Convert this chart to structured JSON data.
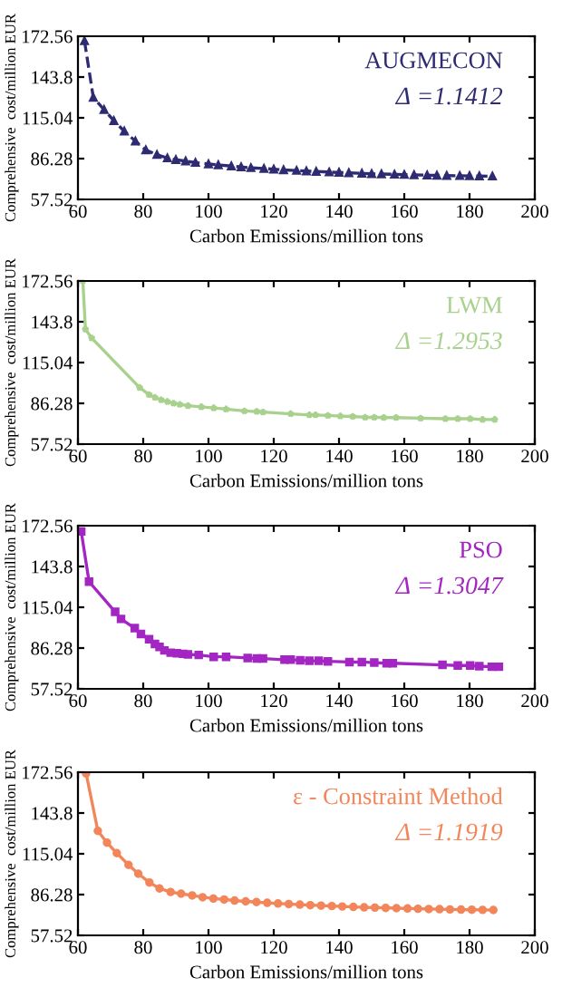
{
  "chart_data": [
    {
      "type": "line",
      "xlabel": "Carbon Emissions/million tons",
      "ylabel": "Comprehensive  cost/million EUR",
      "annotations": [
        "AUGMECON",
        "Δ =1.1412"
      ],
      "xlim": [
        60,
        200
      ],
      "ylim": [
        57.52,
        172.56
      ],
      "xticks": [
        60,
        80,
        100,
        120,
        140,
        160,
        180,
        200
      ],
      "yticks": [
        57.52,
        86.28,
        115.04,
        143.8,
        172.56
      ],
      "marker": "triangle",
      "line_style": "dashed",
      "grid": false,
      "series": [
        {
          "color": "#2e2b72",
          "x": [
            62,
            64.7,
            68,
            71,
            74.2,
            77.6,
            80.8,
            84.2,
            87.4,
            90,
            93,
            96,
            100,
            103,
            107,
            110,
            113,
            117,
            120,
            123,
            127,
            130,
            133,
            137,
            140,
            143,
            147,
            150,
            153,
            157,
            160,
            163,
            167,
            170,
            173,
            177,
            180,
            183,
            187
          ],
          "values": [
            169.3,
            129.4,
            120.8,
            113,
            105.6,
            98.6,
            92.4,
            89.1,
            86.7,
            85.5,
            84.5,
            83.5,
            82.5,
            81.8,
            81,
            80.4,
            79.8,
            79.3,
            78.8,
            78.3,
            77.9,
            77.5,
            77.2,
            76.8,
            76.5,
            76.2,
            75.9,
            75.6,
            75.4,
            75.2,
            75,
            74.8,
            74.6,
            74.5,
            74.3,
            74.2,
            74.1,
            74,
            73.9
          ]
        }
      ]
    },
    {
      "type": "line",
      "xlabel": "Carbon Emissions/million tons",
      "ylabel": "Comprehensive  cost/million EUR",
      "annotations": [
        "LWM",
        "Δ =1.2953"
      ],
      "xlim": [
        60,
        200
      ],
      "ylim": [
        57.52,
        172.56
      ],
      "xticks": [
        60,
        80,
        100,
        120,
        140,
        160,
        180,
        200
      ],
      "yticks": [
        57.52,
        86.28,
        115.04,
        143.8,
        172.56
      ],
      "marker": "star",
      "line_style": "solid",
      "grid": false,
      "series": [
        {
          "color": "#a9d18e",
          "x": [
            61.5,
            62.3,
            64.2,
            78.9,
            81.8,
            83.6,
            85.5,
            87.4,
            89.3,
            91.2,
            93.7,
            97.8,
            101.6,
            105.4,
            111,
            114.8,
            116.7,
            125.2,
            130.9,
            132.8,
            136.6,
            140.4,
            144.2,
            148,
            150.8,
            153.7,
            157.5,
            165,
            172.6,
            176.4,
            180.2,
            184,
            187.7
          ],
          "values": [
            172.56,
            138.5,
            132.3,
            97.4,
            92.4,
            90.4,
            88.7,
            87.5,
            86.3,
            85.5,
            84.6,
            83.8,
            83,
            82.2,
            80.9,
            80.5,
            80.1,
            78.9,
            78.1,
            78.1,
            77.7,
            77.3,
            77,
            76.4,
            76.4,
            76.2,
            76.2,
            75.8,
            75.4,
            75.4,
            75.4,
            74.9,
            74.9
          ]
        }
      ]
    },
    {
      "type": "line",
      "xlabel": "Carbon Emissions/million tons",
      "ylabel": "Comprehensive  cost/million EUR",
      "annotations": [
        "PSO",
        "Δ =1.3047"
      ],
      "xlim": [
        60,
        200
      ],
      "ylim": [
        57.52,
        172.56
      ],
      "xticks": [
        60,
        80,
        100,
        120,
        140,
        160,
        180,
        200
      ],
      "yticks": [
        57.52,
        86.28,
        115.04,
        143.8,
        172.56
      ],
      "marker": "square",
      "line_style": "solid",
      "grid": false,
      "series": [
        {
          "color": "#a326c2",
          "x": [
            61,
            63.4,
            71.4,
            73.2,
            77.4,
            79.3,
            81.8,
            83.6,
            85,
            86.5,
            88.4,
            90.3,
            92.2,
            93.7,
            97,
            101.6,
            105.4,
            112,
            114.8,
            116.7,
            123.3,
            125.2,
            128.1,
            130.9,
            133.8,
            136.6,
            143.2,
            147,
            150.8,
            154.6,
            156.5,
            171.7,
            176.4,
            180.2,
            183,
            186.8,
            189
          ],
          "values": [
            168.5,
            133.1,
            111.8,
            106.8,
            100.3,
            96.2,
            92.5,
            89.1,
            87.1,
            84.6,
            83,
            82.6,
            82.2,
            81.8,
            81.4,
            80.1,
            80.1,
            79.3,
            78.9,
            78.9,
            78.1,
            78.1,
            77.7,
            77.3,
            77.3,
            76.9,
            76.4,
            76.4,
            76,
            75.6,
            75.6,
            74.4,
            74,
            74,
            73.5,
            73.1,
            73.1
          ]
        }
      ]
    },
    {
      "type": "line",
      "xlabel": "Carbon Emissions/million tons",
      "ylabel": "Comprehensive  cost/million EUR",
      "annotations": [
        "ε - Constraint Method",
        "Δ =1.1919"
      ],
      "xlim": [
        60,
        200
      ],
      "ylim": [
        57.52,
        172.56
      ],
      "xticks": [
        60,
        80,
        100,
        120,
        140,
        160,
        180,
        200
      ],
      "yticks": [
        57.52,
        86.28,
        115.04,
        143.8,
        172.56
      ],
      "marker": "circle",
      "line_style": "solid",
      "grid": false,
      "series": [
        {
          "color": "#f2865a",
          "x": [
            62.5,
            66.1,
            68.9,
            71.9,
            75.5,
            78.5,
            81.9,
            85,
            88.4,
            91.6,
            95,
            98.2,
            101.5,
            104.8,
            108,
            111.4,
            114.7,
            118,
            121.3,
            124.6,
            128,
            131.2,
            134.5,
            137.8,
            141,
            144.4,
            147.7,
            151,
            154.3,
            157.6,
            161,
            164.2,
            167.5,
            170.8,
            174,
            177.4,
            180.7,
            184,
            187.3
          ],
          "values": [
            171.7,
            131.2,
            122.9,
            115.5,
            107.2,
            101,
            94.8,
            90.6,
            88.1,
            86.9,
            85.7,
            84.4,
            83.5,
            82.8,
            82.1,
            81.5,
            81,
            80.5,
            80,
            79.6,
            79.2,
            78.8,
            78.5,
            78.2,
            77.9,
            77.6,
            77.3,
            77.1,
            76.9,
            76.7,
            76.5,
            76.3,
            76.1,
            76,
            75.8,
            75.7,
            75.6,
            75.5,
            75.4
          ]
        }
      ]
    }
  ]
}
